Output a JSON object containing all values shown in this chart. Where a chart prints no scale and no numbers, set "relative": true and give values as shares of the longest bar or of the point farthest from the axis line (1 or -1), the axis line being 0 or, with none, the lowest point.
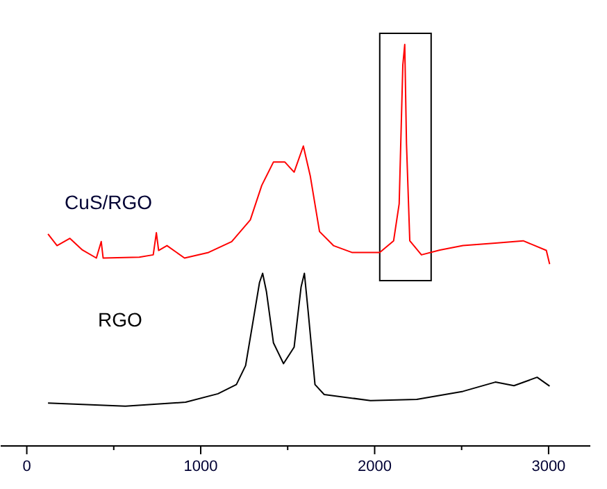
{
  "chart_data": {
    "type": "line",
    "relative": true,
    "xlim": [
      -150,
      3240
    ],
    "xticks": [
      0,
      {
        "value": 500,
        "label": null
      },
      1000,
      {
        "value": 1500,
        "label": null
      },
      2000,
      {
        "value": 2500,
        "label": null
      },
      3000
    ],
    "tick_labels": "x",
    "grid": false,
    "marker": "none",
    "line_style": "solid",
    "series": [
      {
        "name": "CuS/RGO",
        "color": "#ff0000",
        "x": [
          122,
          174,
          248,
          320,
          400,
          428,
          439,
          647,
          727,
          745,
          758,
          806,
          907,
          1045,
          1178,
          1285,
          1351,
          1418,
          1484,
          1537,
          1590,
          1630,
          1683,
          1763,
          1869,
          2029,
          2109,
          2141,
          2162,
          2173,
          2183,
          2202,
          2269,
          2375,
          2508,
          2694,
          2854,
          2987,
          3006
        ],
        "values": [
          0.528,
          0.499,
          0.517,
          0.488,
          0.468,
          0.509,
          0.468,
          0.47,
          0.476,
          0.531,
          0.487,
          0.499,
          0.468,
          0.482,
          0.509,
          0.563,
          0.649,
          0.707,
          0.707,
          0.682,
          0.747,
          0.672,
          0.534,
          0.499,
          0.482,
          0.482,
          0.511,
          0.603,
          0.949,
          1,
          0.753,
          0.511,
          0.476,
          0.488,
          0.499,
          0.505,
          0.511,
          0.487,
          0.453
        ]
      },
      {
        "name": "RGO",
        "color": "#000000",
        "x": [
          122,
          567,
          913,
          1099,
          1205,
          1258,
          1298,
          1338,
          1356,
          1378,
          1418,
          1476,
          1537,
          1577,
          1596,
          1617,
          1657,
          1710,
          1976,
          2242,
          2508,
          2694,
          2801,
          2934,
          3006
        ],
        "values": [
          0.107,
          0.099,
          0.109,
          0.13,
          0.153,
          0.2,
          0.303,
          0.407,
          0.43,
          0.384,
          0.257,
          0.205,
          0.246,
          0.396,
          0.43,
          0.338,
          0.153,
          0.128,
          0.113,
          0.116,
          0.136,
          0.159,
          0.15,
          0.171,
          0.149
        ]
      }
    ]
  }
}
